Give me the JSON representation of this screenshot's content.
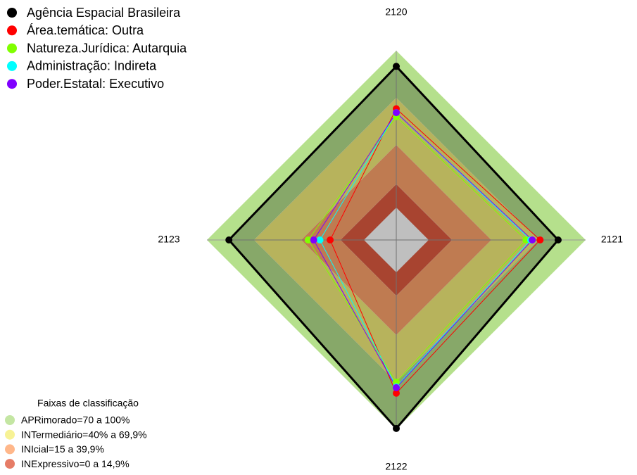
{
  "chart_data": {
    "type": "radar",
    "categories": [
      "2120",
      "2121",
      "2122",
      "2123"
    ],
    "rlim": [
      0,
      100
    ],
    "series": [
      {
        "name": "Agência Espacial Brasileira",
        "color": "#000000",
        "values": [
          90,
          82.5,
          99.5,
          86
        ]
      },
      {
        "name": "Área.temática: Outra",
        "color": "#ff0000",
        "values": [
          63,
          71,
          77,
          21.5
        ]
      },
      {
        "name": "Natureza.Jurídica: Autarquia",
        "color": "#80ff00",
        "values": [
          58,
          62,
          70,
          35.5
        ]
      },
      {
        "name": "Administração: Indireta",
        "color": "#00ffff",
        "values": [
          60.5,
          65,
          73,
          28
        ]
      },
      {
        "name": "Poder.Estatal: Executivo",
        "color": "#8000ff",
        "values": [
          60.5,
          66,
          73.5,
          32
        ]
      }
    ],
    "bands_title": "Faixas de classificação",
    "bands": [
      {
        "name": "APRimorado=70 a 100%",
        "color": "#b5e08c",
        "range": [
          70,
          100
        ]
      },
      {
        "name": "INTermediário=40% a 69,9%",
        "color": "#f5ef7b",
        "range": [
          40,
          69.9
        ]
      },
      {
        "name": "INIcial=15 a 39,9%",
        "color": "#ffa56d",
        "range": [
          15,
          39.9
        ]
      },
      {
        "name": "INExpressivo=0 a 14,9%",
        "color": "#e05b40",
        "range": [
          0,
          14.9
        ]
      }
    ]
  }
}
